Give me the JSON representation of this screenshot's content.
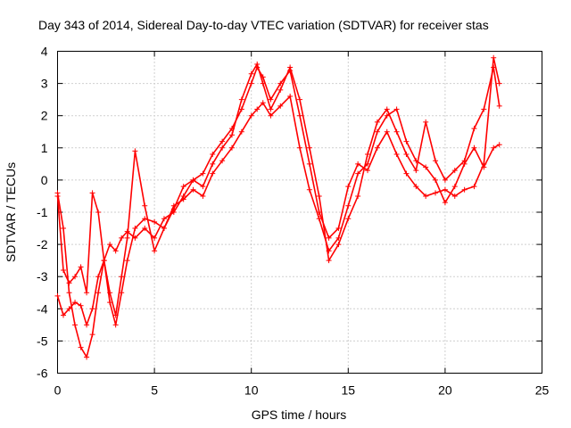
{
  "chart_data": {
    "type": "scatter",
    "title": "Day 343 of 2014, Sidereal Day-to-day VTEC variation (SDTVAR) for receiver stas",
    "xlabel": "GPS time / hours",
    "ylabel": "SDTVAR / TECUs",
    "xlim": [
      0,
      25
    ],
    "ylim": [
      -6,
      4
    ],
    "xticks": [
      0,
      5,
      10,
      15,
      20,
      25
    ],
    "yticks": [
      -6,
      -5,
      -4,
      -3,
      -2,
      -1,
      0,
      1,
      2,
      3,
      4
    ],
    "grid": true,
    "legend": "none",
    "marker": "plus",
    "color": "#ff0000",
    "series": [
      {
        "x": [
          0.0,
          0.3,
          0.6,
          0.9,
          1.2,
          1.5,
          1.8,
          2.1,
          2.4,
          2.7,
          3.0,
          3.3,
          3.6,
          4.0,
          4.5,
          5.0,
          5.5,
          6.0,
          6.5,
          7.0,
          7.5,
          8.0,
          8.5,
          9.0,
          9.5,
          10.0,
          10.3,
          10.6,
          11.0,
          11.5,
          12.0,
          12.5,
          13.0,
          13.5,
          14.0,
          14.5,
          15.0,
          15.5,
          16.0,
          16.5,
          17.0,
          17.5,
          18.0,
          18.5,
          19.0,
          19.5,
          20.0,
          20.5,
          21.0,
          21.5,
          22.0,
          22.5,
          22.8
        ],
        "y": [
          -0.4,
          -1.5,
          -3.5,
          -4.5,
          -5.2,
          -5.5,
          -4.8,
          -3.5,
          -2.5,
          -2.0,
          -2.2,
          -1.8,
          -1.6,
          -1.8,
          -1.5,
          -1.8,
          -1.2,
          -1.0,
          -0.5,
          0.0,
          0.2,
          0.8,
          1.2,
          1.6,
          2.2,
          3.0,
          3.5,
          3.2,
          2.5,
          3.0,
          3.4,
          2.0,
          0.5,
          -1.0,
          -1.8,
          -1.5,
          -0.2,
          0.5,
          0.3,
          1.0,
          1.5,
          0.8,
          0.2,
          -0.2,
          -0.5,
          -0.4,
          -0.3,
          -0.5,
          -0.3,
          -0.2,
          0.5,
          3.8,
          3.0
        ]
      },
      {
        "x": [
          0.0,
          0.3,
          0.6,
          0.9,
          1.2,
          1.5,
          1.8,
          2.1,
          2.4,
          2.7,
          3.0,
          3.3,
          3.6,
          4.0,
          4.5,
          5.0,
          5.5,
          6.0,
          6.5,
          7.0,
          7.5,
          8.0,
          8.5,
          9.0,
          9.5,
          10.0,
          10.3,
          10.6,
          11.0,
          11.5,
          12.0,
          12.5,
          13.0,
          13.5,
          14.0,
          14.5,
          15.0,
          15.5,
          16.0,
          16.5,
          17.0,
          17.5,
          18.0,
          18.5,
          19.0,
          19.5,
          20.0,
          20.5,
          21.0,
          21.5,
          22.0,
          22.5,
          22.8
        ],
        "y": [
          -0.5,
          -2.8,
          -3.2,
          -3.0,
          -2.7,
          -3.5,
          -0.4,
          -1.0,
          -2.5,
          -3.8,
          -4.5,
          -3.5,
          -2.5,
          -1.5,
          -1.2,
          -1.3,
          -1.5,
          -0.8,
          -0.6,
          -0.3,
          -0.5,
          0.2,
          0.6,
          1.0,
          1.5,
          2.0,
          2.2,
          2.4,
          2.0,
          2.3,
          2.6,
          1.0,
          -0.3,
          -1.2,
          -2.2,
          -1.8,
          -0.8,
          0.2,
          0.5,
          1.5,
          2.0,
          2.2,
          1.2,
          0.6,
          0.4,
          0.0,
          -0.7,
          -0.2,
          0.5,
          1.0,
          0.4,
          1.0,
          1.1
        ]
      },
      {
        "x": [
          0.0,
          0.3,
          0.6,
          0.9,
          1.2,
          1.5,
          1.8,
          2.1,
          2.4,
          2.7,
          3.0,
          3.3,
          3.6,
          4.0,
          4.5,
          5.0,
          5.5,
          6.0,
          6.5,
          7.0,
          7.5,
          8.0,
          8.5,
          9.0,
          9.5,
          10.0,
          10.3,
          10.6,
          11.0,
          11.5,
          12.0,
          12.5,
          13.0,
          13.5,
          14.0,
          14.5,
          15.0,
          15.5,
          16.0,
          16.5,
          17.0,
          17.5,
          18.0,
          18.5,
          19.0,
          19.5,
          20.0,
          20.5,
          21.0,
          21.5,
          22.0,
          22.5,
          22.8
        ],
        "y": [
          -3.6,
          -4.2,
          -4.0,
          -3.8,
          -3.9,
          -4.5,
          -4.0,
          -3.0,
          -2.5,
          -3.5,
          -4.2,
          -3.0,
          -1.8,
          0.9,
          -0.8,
          -2.2,
          -1.5,
          -0.9,
          -0.2,
          0.0,
          -0.2,
          0.5,
          1.0,
          1.4,
          2.5,
          3.3,
          3.6,
          3.0,
          2.2,
          2.8,
          3.5,
          2.5,
          1.0,
          -0.5,
          -2.5,
          -2.0,
          -1.2,
          -0.5,
          0.8,
          1.8,
          2.2,
          1.5,
          0.8,
          0.3,
          1.8,
          0.6,
          0.0,
          0.3,
          0.6,
          1.6,
          2.2,
          3.5,
          2.3
        ]
      }
    ]
  }
}
